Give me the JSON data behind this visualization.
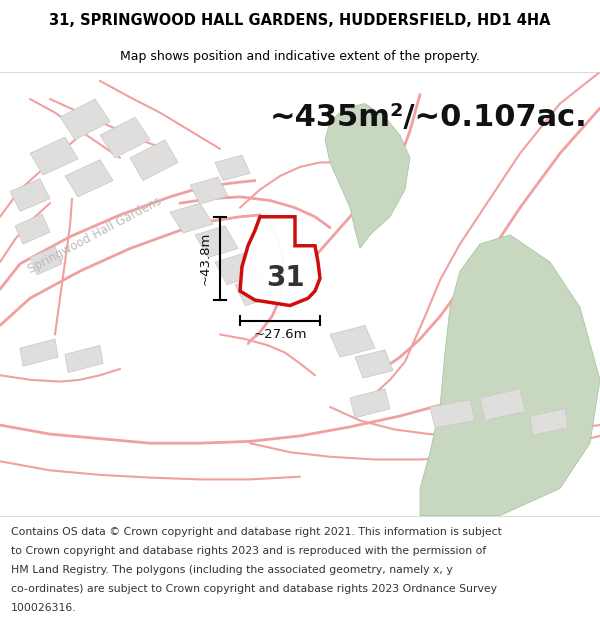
{
  "title": "31, SPRINGWOOD HALL GARDENS, HUDDERSFIELD, HD1 4HA",
  "subtitle": "Map shows position and indicative extent of the property.",
  "area_text": "~435m²/~0.107ac.",
  "label_number": "31",
  "dim_width": "~27.6m",
  "dim_height": "~43.8m",
  "bg_color": "#ffffff",
  "map_bg": "#f5f3f0",
  "road_color": "#f0a0a0",
  "building_fill": "#e0dedd",
  "building_edge": "#c8c6c4",
  "green_fill": "#c8d8c0",
  "property_fill": "#ffffff",
  "property_edge": "#cc0000",
  "street_label": "Springwood Hall Gardens",
  "street_color": "#bbbbbb",
  "footer_lines": [
    "Contains OS data © Crown copyright and database right 2021. This information is subject",
    "to Crown copyright and database rights 2023 and is reproduced with the permission of",
    "HM Land Registry. The polygons (including the associated geometry, namely x, y",
    "co-ordinates) are subject to Crown copyright and database rights 2023 Ordnance Survey",
    "100026316."
  ],
  "title_fontsize": 10.5,
  "subtitle_fontsize": 9,
  "area_fontsize": 22,
  "label_fontsize": 20,
  "dim_fontsize": 9.5,
  "footer_fontsize": 7.8,
  "street_fontsize": 8.5
}
